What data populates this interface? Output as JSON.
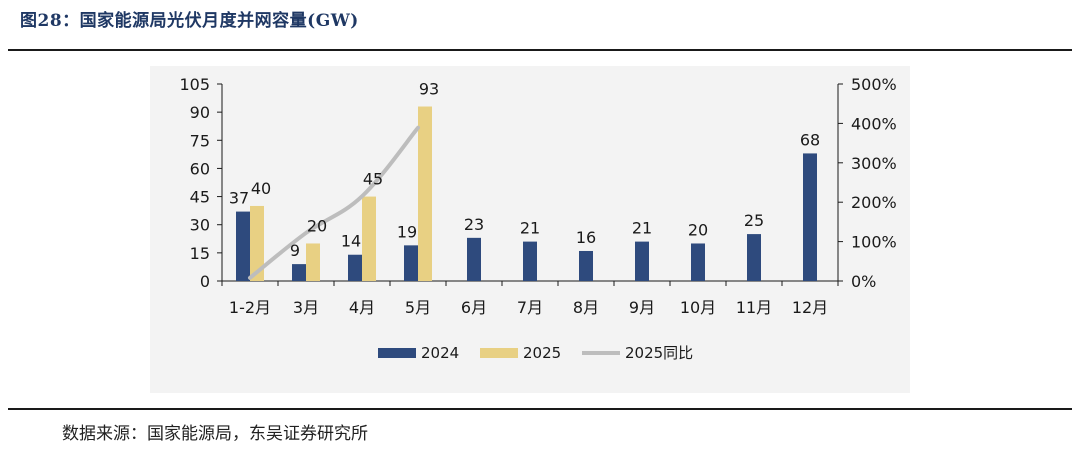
{
  "header": {
    "figure_title": "图28：国家能源局光伏月度并网容量(GW)"
  },
  "footer": {
    "source": "数据来源：国家能源局，东吴证券研究所"
  },
  "colors": {
    "s2024": "#2e4a7d",
    "s2025": "#e8d083",
    "yoy": "#bdbdbd"
  },
  "chart_data": {
    "type": "bar",
    "title": "国家能源局光伏月度并网容量(GW)",
    "categories": [
      "1-2月",
      "3月",
      "4月",
      "5月",
      "6月",
      "7月",
      "8月",
      "9月",
      "10月",
      "11月",
      "12月"
    ],
    "series": [
      {
        "name": "2024",
        "type": "bar",
        "axis": "left",
        "values": [
          37,
          9,
          14,
          19,
          23,
          21,
          16,
          21,
          20,
          25,
          68
        ],
        "labels": [
          "37",
          "9",
          "14",
          "19",
          "23",
          "21",
          "16",
          "21",
          "20",
          "25",
          "68"
        ]
      },
      {
        "name": "2025",
        "type": "bar",
        "axis": "left",
        "values": [
          40,
          20,
          45,
          93,
          null,
          null,
          null,
          null,
          null,
          null,
          null
        ],
        "labels": [
          "40",
          "20",
          "45",
          "93"
        ]
      },
      {
        "name": "2025同比",
        "type": "line",
        "axis": "right",
        "values": [
          0.08,
          1.22,
          2.15,
          3.89,
          null,
          null,
          null,
          null,
          null,
          null,
          null
        ]
      }
    ],
    "y_left": {
      "min": 0,
      "max": 105,
      "ticks": [
        "0",
        "15",
        "30",
        "45",
        "60",
        "75",
        "90",
        "105"
      ]
    },
    "y_right": {
      "min": 0,
      "max": 5,
      "ticks": [
        "0%",
        "100%",
        "200%",
        "300%",
        "400%",
        "500%"
      ]
    },
    "legend": {
      "position": "bottom",
      "items": [
        "2024",
        "2025",
        "2025同比"
      ]
    }
  }
}
